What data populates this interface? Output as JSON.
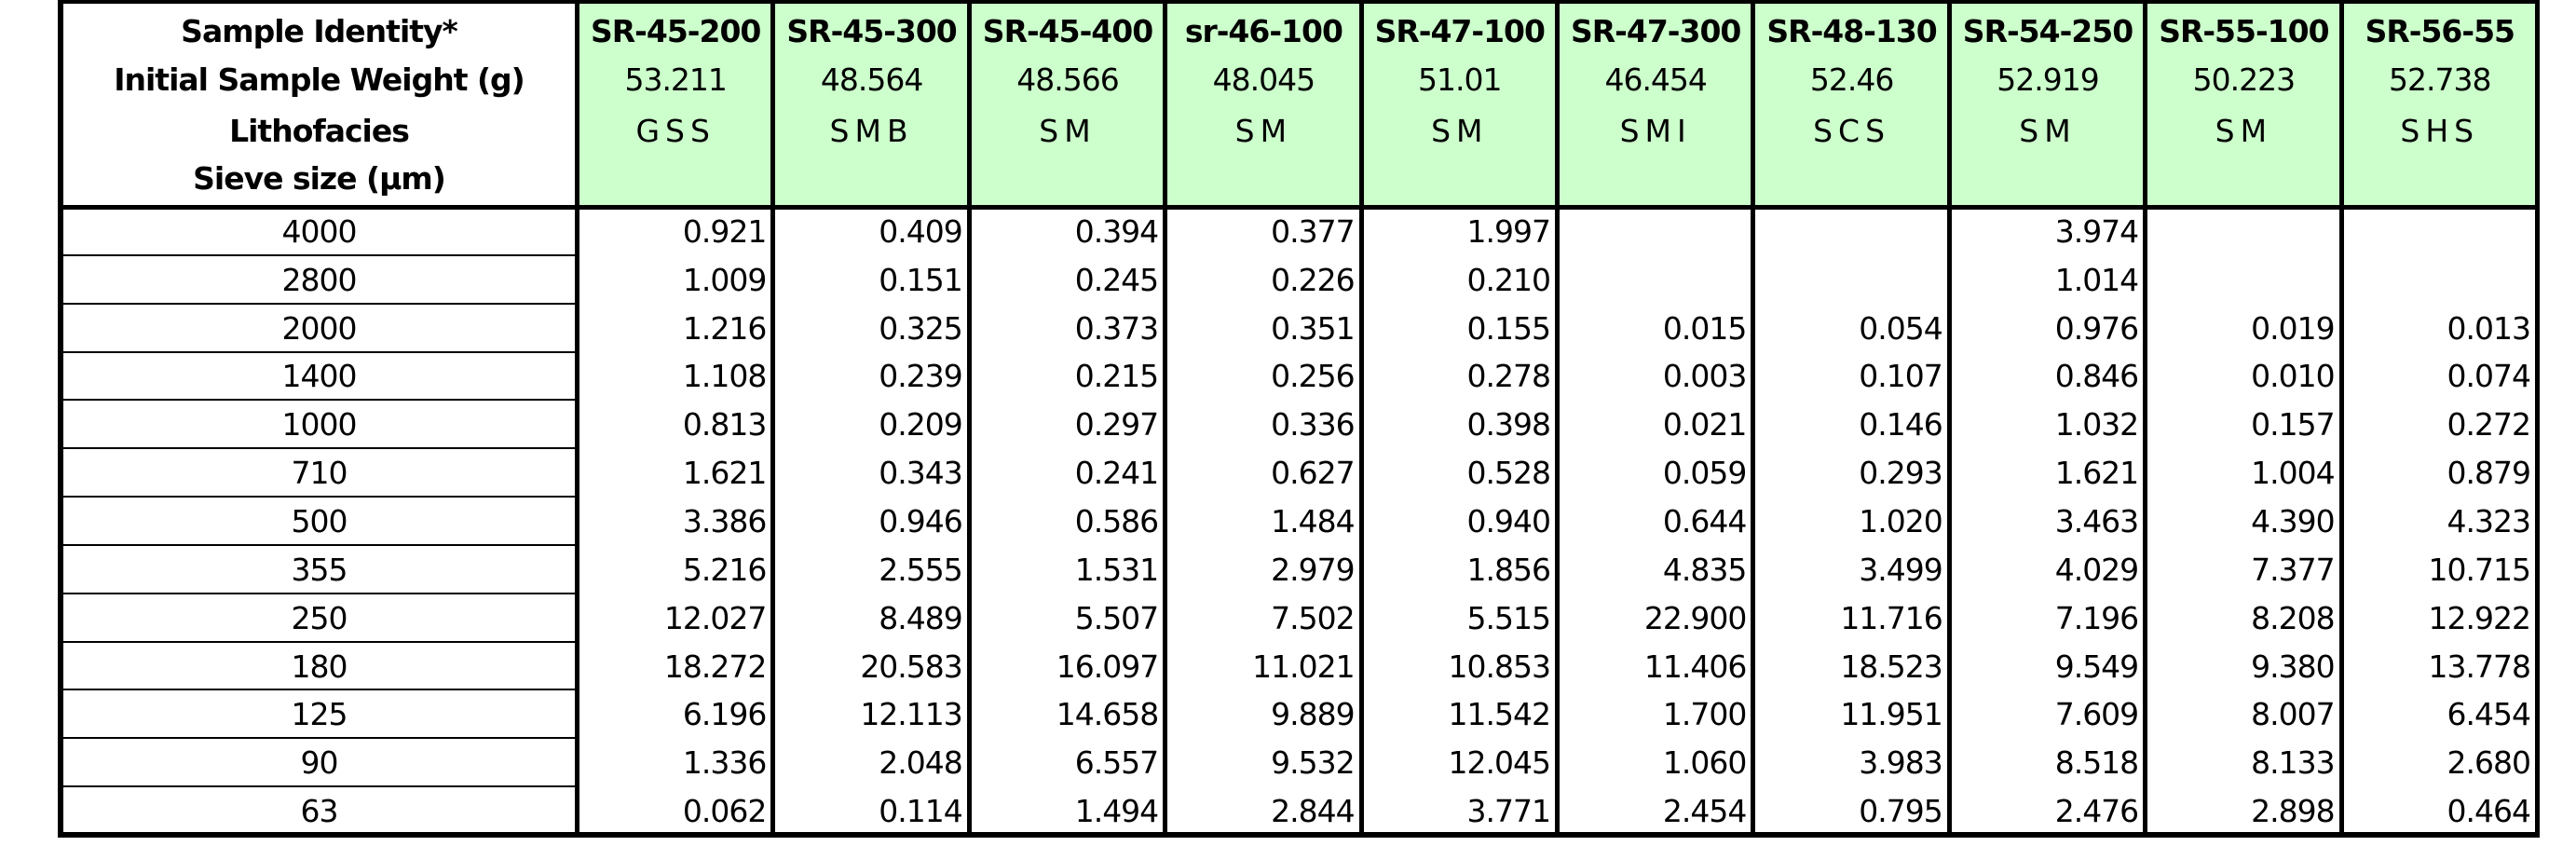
{
  "table": {
    "row_labels": [
      "Sample Identity*",
      "Initial Sample Weight (g)",
      "Lithofacies",
      "Sieve size (µm)"
    ],
    "samples": [
      {
        "id": "SR-45-200",
        "weight": "53.211",
        "lithofacies": "GSS"
      },
      {
        "id": "SR-45-300",
        "weight": "48.564",
        "lithofacies": "SMB"
      },
      {
        "id": "SR-45-400",
        "weight": "48.566",
        "lithofacies": "SM"
      },
      {
        "id": "sr-46-100",
        "weight": "48.045",
        "lithofacies": "SM"
      },
      {
        "id": "SR-47-100",
        "weight": "51.01",
        "lithofacies": "SM"
      },
      {
        "id": "SR-47-300",
        "weight": "46.454",
        "lithofacies": "SMI"
      },
      {
        "id": "SR-48-130",
        "weight": "52.46",
        "lithofacies": "SCS"
      },
      {
        "id": "SR-54-250",
        "weight": "52.919",
        "lithofacies": "SM"
      },
      {
        "id": "SR-55-100",
        "weight": "50.223",
        "lithofacies": "SM"
      },
      {
        "id": "SR-56-55",
        "weight": "52.738",
        "lithofacies": "SHS"
      }
    ],
    "rows": [
      {
        "sieve": "4000",
        "values": [
          "0.921",
          "0.409",
          "0.394",
          "0.377",
          "1.997",
          null,
          null,
          "3.974",
          null,
          null
        ]
      },
      {
        "sieve": "2800",
        "values": [
          "1.009",
          "0.151",
          "0.245",
          "0.226",
          "0.210",
          null,
          null,
          "1.014",
          null,
          null
        ]
      },
      {
        "sieve": "2000",
        "values": [
          "1.216",
          "0.325",
          "0.373",
          "0.351",
          "0.155",
          "0.015",
          "0.054",
          "0.976",
          "0.019",
          "0.013"
        ]
      },
      {
        "sieve": "1400",
        "values": [
          "1.108",
          "0.239",
          "0.215",
          "0.256",
          "0.278",
          "0.003",
          "0.107",
          "0.846",
          "0.010",
          "0.074"
        ]
      },
      {
        "sieve": "1000",
        "values": [
          "0.813",
          "0.209",
          "0.297",
          "0.336",
          "0.398",
          "0.021",
          "0.146",
          "1.032",
          "0.157",
          "0.272"
        ]
      },
      {
        "sieve": "710",
        "values": [
          "1.621",
          "0.343",
          "0.241",
          "0.627",
          "0.528",
          "0.059",
          "0.293",
          "1.621",
          "1.004",
          "0.879"
        ]
      },
      {
        "sieve": "500",
        "values": [
          "3.386",
          "0.946",
          "0.586",
          "1.484",
          "0.940",
          "0.644",
          "1.020",
          "3.463",
          "4.390",
          "4.323"
        ]
      },
      {
        "sieve": "355",
        "values": [
          "5.216",
          "2.555",
          "1.531",
          "2.979",
          "1.856",
          "4.835",
          "3.499",
          "4.029",
          "7.377",
          "10.715"
        ]
      },
      {
        "sieve": "250",
        "values": [
          "12.027",
          "8.489",
          "5.507",
          "7.502",
          "5.515",
          "22.900",
          "11.716",
          "7.196",
          "8.208",
          "12.922"
        ]
      },
      {
        "sieve": "180",
        "values": [
          "18.272",
          "20.583",
          "16.097",
          "11.021",
          "10.853",
          "11.406",
          "18.523",
          "9.549",
          "9.380",
          "13.778"
        ]
      },
      {
        "sieve": "125",
        "values": [
          "6.196",
          "12.113",
          "14.658",
          "9.889",
          "11.542",
          "1.700",
          "11.951",
          "7.609",
          "8.007",
          "6.454"
        ]
      },
      {
        "sieve": "90",
        "values": [
          "1.336",
          "2.048",
          "6.557",
          "9.532",
          "12.045",
          "1.060",
          "3.983",
          "8.518",
          "8.133",
          "2.680"
        ]
      },
      {
        "sieve": "63",
        "values": [
          "0.062",
          "0.114",
          "1.494",
          "2.844",
          "3.771",
          "2.454",
          "0.795",
          "2.476",
          "2.898",
          "0.464"
        ]
      }
    ]
  }
}
